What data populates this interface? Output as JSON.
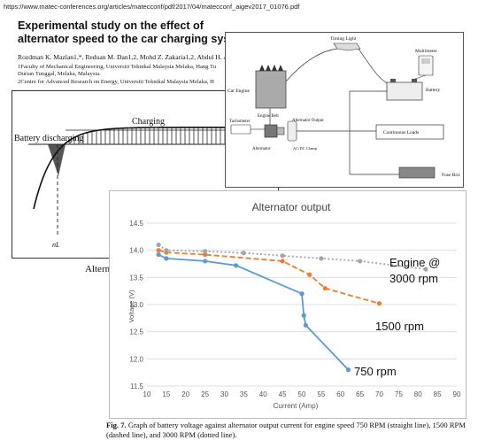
{
  "page": {
    "url": "https://www.matec-conferences.org/articles/matecconf/pdf/2017/04/matecconf_aigev2017_01076.pdf",
    "title": "Experimental study on the effect of alternator speed to the car charging system",
    "authors": "Rozdman K. Mazlan1,*, Reduan M. Dan1,2, Mohd Z. Zakaria1,2, Abdul H. A.",
    "affil_line1": "1Faculty of Mechanical Engineering, Universiti Teknikal Malaysia Melaka, Hang Tu",
    "affil_line2": "Durian Tunggal, Melaka, Malaysia.",
    "affil_line3": "2Centre for Advanced Research on Energy, Universiti Teknikal Malaysia Melaka, H"
  },
  "left_diagram": {
    "charging_label": "Charging",
    "discharging_label": "Battery discharging",
    "ig_label": "IG",
    "ic_label": "IL",
    "nl_label": "nL",
    "x_label": "Alternator speed"
  },
  "right_diagram": {
    "timing_light": "Timing Light",
    "multimeter": "Multimeter",
    "car_engine": "Car Engine",
    "battery": "Battery",
    "engine_belt": "Engine Belt",
    "tachometer": "Tachometer",
    "alternator_output": "Alternator Output",
    "continuous_loads": "Continuous Loads",
    "alternator": "Alternator",
    "acdc_clamp": "AC/DC Clamp",
    "fuse_box": "Fuse Box"
  },
  "chart_data": {
    "type": "line",
    "title": "Alternator output",
    "xlabel": "Current (Amp)",
    "ylabel": "Voltage (V)",
    "xlim": [
      10,
      90
    ],
    "ylim": [
      11.5,
      14.5
    ],
    "x_ticks": [
      10,
      15,
      20,
      25,
      30,
      35,
      40,
      45,
      50,
      55,
      60,
      65,
      70,
      75,
      80,
      85,
      90
    ],
    "y_ticks": [
      11.5,
      12,
      12.5,
      13,
      13.5,
      14,
      14.5
    ],
    "grid": true,
    "series": [
      {
        "name": "750 rpm",
        "style": "solid",
        "color": "#5b9bd5",
        "x": [
          13,
          15,
          25,
          33,
          50,
          50.5,
          51,
          62
        ],
        "y": [
          13.92,
          13.85,
          13.8,
          13.72,
          13.2,
          12.8,
          12.62,
          11.8
        ]
      },
      {
        "name": "1500 rpm",
        "style": "dashed",
        "color": "#ed7d31",
        "x": [
          13,
          15,
          25,
          45,
          52,
          56,
          70
        ],
        "y": [
          14.0,
          13.96,
          13.92,
          13.8,
          13.55,
          13.3,
          13.02
        ]
      },
      {
        "name": "Engine @ 3000 rpm",
        "style": "dotted",
        "color": "#a5a5a5",
        "x": [
          13,
          15,
          25,
          35,
          45,
          55,
          65,
          82
        ],
        "y": [
          14.1,
          14.0,
          13.98,
          13.95,
          13.9,
          13.85,
          13.8,
          13.65
        ]
      }
    ],
    "annotations": [
      "Engine @",
      "3000 rpm",
      "1500 rpm",
      "750 rpm"
    ]
  },
  "caption": {
    "label": "Fig. 7.",
    "text": " Graph of battery voltage against alternator output current for engine speed 750 RPM (straight line), 1500 RPM (dashed line), and 3000 RPM (dotted line)."
  }
}
